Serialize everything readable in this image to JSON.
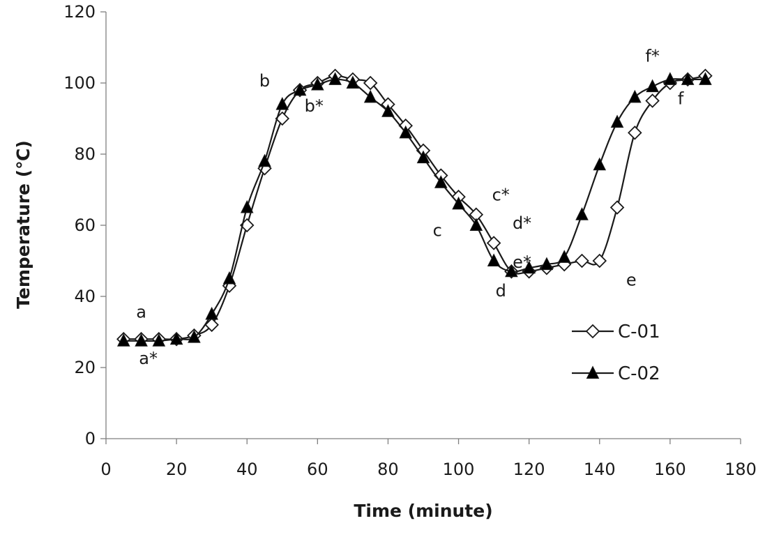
{
  "chart_data": {
    "type": "line",
    "title": "",
    "xlabel": "Time (minute)",
    "ylabel": "Temperature (℃)",
    "xlim": [
      0,
      180
    ],
    "ylim": [
      0,
      120
    ],
    "xticks": [
      "0",
      "20",
      "40",
      "60",
      "80",
      "100",
      "120",
      "140",
      "160",
      "180"
    ],
    "yticks": [
      "0",
      "20",
      "40",
      "60",
      "80",
      "100",
      "120"
    ],
    "grid": false,
    "legend_position": "right",
    "series": [
      {
        "name": "C-01",
        "marker": "open-diamond",
        "x": [
          5,
          10,
          15,
          20,
          25,
          30,
          35,
          40,
          45,
          50,
          55,
          60,
          65,
          70,
          75,
          80,
          85,
          90,
          95,
          100,
          105,
          110,
          115,
          120,
          125,
          130,
          135,
          140,
          145,
          150,
          155,
          160,
          165,
          170
        ],
        "y": [
          28,
          28,
          28,
          28,
          29,
          32,
          43,
          60,
          76,
          90,
          98,
          100,
          102,
          101,
          100,
          94,
          88,
          81,
          74,
          68,
          63,
          55,
          47,
          47,
          48,
          49,
          50,
          50,
          65,
          86,
          95,
          100,
          101,
          102
        ]
      },
      {
        "name": "C-02",
        "marker": "filled-triangle",
        "x": [
          5,
          10,
          15,
          20,
          25,
          30,
          35,
          40,
          45,
          50,
          55,
          60,
          65,
          70,
          75,
          80,
          85,
          90,
          95,
          100,
          105,
          110,
          115,
          120,
          125,
          130,
          135,
          140,
          145,
          150,
          155,
          160,
          165,
          170
        ],
        "y": [
          27.5,
          27.5,
          27.5,
          28,
          28.5,
          35,
          45,
          65,
          78,
          94,
          98,
          99.5,
          101,
          100,
          96,
          92,
          86,
          79,
          72,
          66,
          60,
          50,
          47,
          48,
          49,
          51,
          63,
          77,
          89,
          96,
          99,
          101,
          101,
          101
        ]
      }
    ],
    "annotations": [
      {
        "text": "a",
        "x": 10,
        "y": 34
      },
      {
        "text": "a*",
        "x": 12,
        "y": 21
      },
      {
        "text": "b",
        "x": 45,
        "y": 99
      },
      {
        "text": "b*",
        "x": 59,
        "y": 92
      },
      {
        "text": "c",
        "x": 94,
        "y": 57
      },
      {
        "text": "c*",
        "x": 112,
        "y": 67
      },
      {
        "text": "d",
        "x": 112,
        "y": 40
      },
      {
        "text": "d*",
        "x": 118,
        "y": 59
      },
      {
        "text": "e",
        "x": 149,
        "y": 43
      },
      {
        "text": "e*",
        "x": 118,
        "y": 48
      },
      {
        "text": "f",
        "x": 163,
        "y": 94
      },
      {
        "text": "f*",
        "x": 155,
        "y": 106
      }
    ],
    "colors": {
      "line": "#1a1a1a",
      "marker_fill_open": "#ffffff",
      "marker_fill_solid": "#000000",
      "background": "#ffffff"
    }
  }
}
